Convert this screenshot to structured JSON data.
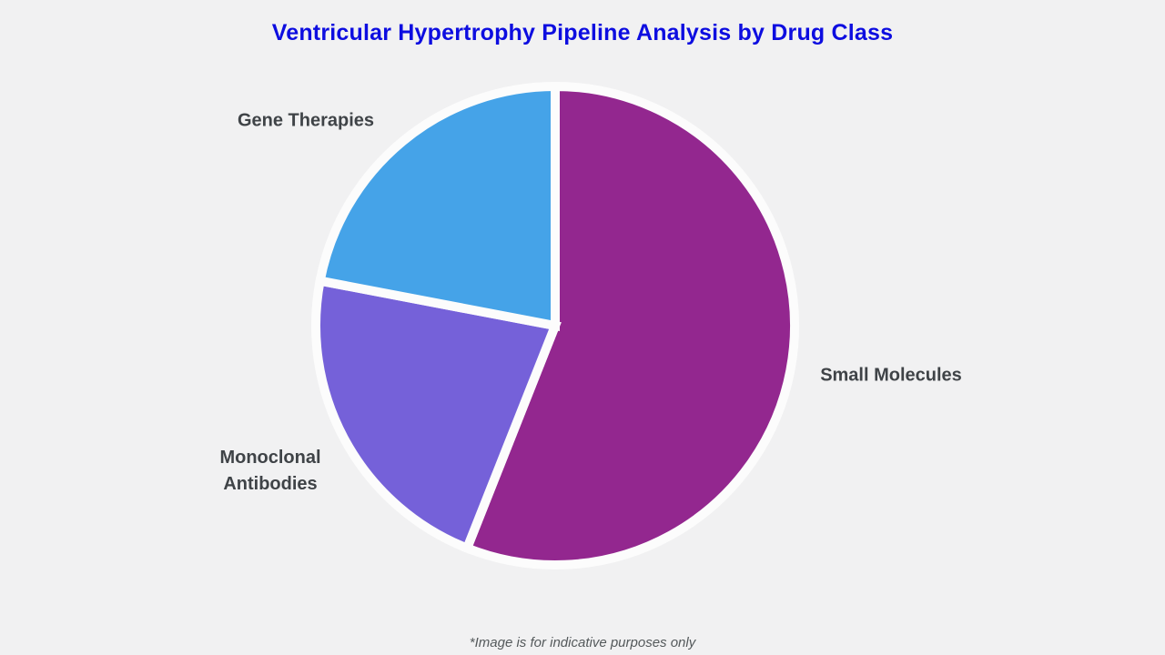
{
  "page": {
    "title": "Ventricular Hypertrophy Pipeline Analysis by Drug Class",
    "footnote": "*Image is for indicative purposes only",
    "background_color": "#f1f1f2",
    "title_color": "#0d0de0",
    "label_color": "#3f4347"
  },
  "chart_data": {
    "type": "pie",
    "title": "Ventricular Hypertrophy Pipeline Analysis by Drug Class",
    "slices": [
      {
        "label": "Small Molecules",
        "value": 56,
        "color": "#93278f"
      },
      {
        "label": "Monoclonal Antibodies",
        "value": 22,
        "color": "#7561d9"
      },
      {
        "label": "Gene Therapies",
        "value": 22,
        "color": "#45a3e8"
      }
    ],
    "start_angle": "12 o'clock",
    "direction": "clockwise",
    "legend_position": "none",
    "labels": "outside",
    "slice_gap_color": "#fcfcfc",
    "annotations": [
      "*Image is for indicative purposes only"
    ]
  }
}
